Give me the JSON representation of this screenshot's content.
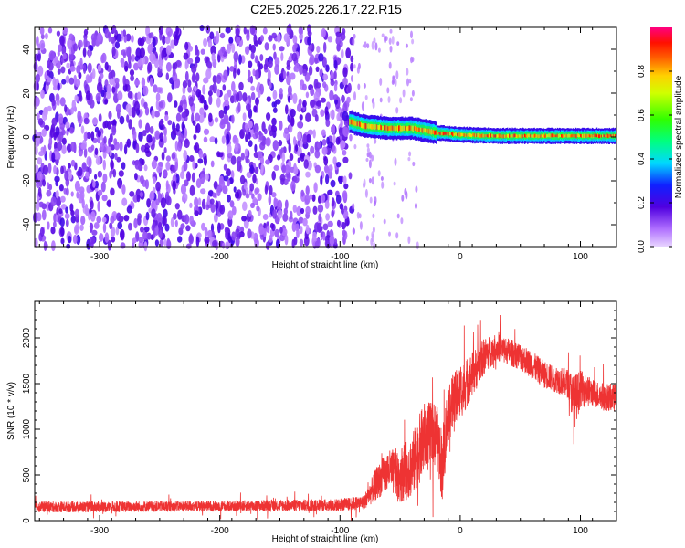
{
  "title": "C2E5.2025.226.17.22.R15",
  "colors": {
    "snr_line": "#ee3333",
    "background": "#ffffff",
    "axis": "#000000"
  },
  "chart_data": [
    {
      "type": "heatmap",
      "title": "C2E5.2025.226.17.22.R15",
      "xlabel": "Height of straight line (km)",
      "ylabel": "Frequency (Hz)",
      "xlim": [
        -354,
        130
      ],
      "ylim": [
        -50,
        50
      ],
      "xticks": [
        -300,
        -200,
        -100,
        0,
        100
      ],
      "xtick_labels": [
        "-300",
        "-200",
        "-100",
        "0",
        "100"
      ],
      "yticks": [
        -40,
        -20,
        0,
        20,
        40
      ],
      "ytick_labels": [
        "-40",
        "-20",
        "0",
        "20",
        "40"
      ],
      "grid": false,
      "colorbar": {
        "label": "Normalized spectral amplitude",
        "range": [
          0,
          1
        ],
        "ticks": [
          0,
          0.2,
          0.4,
          0.6,
          0.8
        ],
        "tick_labels": [
          "0.0",
          "0.2",
          "0.4",
          "0.6",
          "0.8"
        ],
        "colormap": "rainbow (purple → blue → cyan → green → yellow → red → magenta)"
      },
      "features": {
        "noise_region_x": [
          -354,
          -90
        ],
        "noise_amplitude": 0.15,
        "sparse_region_x": [
          -90,
          -35
        ],
        "signal_start_x": -92,
        "signal_track": [
          {
            "x": -92,
            "f": 7
          },
          {
            "x": -80,
            "f": 5
          },
          {
            "x": -60,
            "f": 4
          },
          {
            "x": -40,
            "f": 4
          },
          {
            "x": -20,
            "f": 2
          },
          {
            "x": 0,
            "f": 1
          },
          {
            "x": 30,
            "f": 0.5
          },
          {
            "x": 60,
            "f": 0.5
          },
          {
            "x": 90,
            "f": 0.5
          },
          {
            "x": 130,
            "f": 0.5
          }
        ]
      }
    },
    {
      "type": "line",
      "xlabel": "Height of straight line (km)",
      "ylabel": "SNR (10 * v/v)",
      "xlim": [
        -354,
        130
      ],
      "ylim": [
        0,
        2400
      ],
      "xticks": [
        -300,
        -200,
        -100,
        0,
        100
      ],
      "xtick_labels": [
        "-300",
        "-200",
        "-100",
        "0",
        "100"
      ],
      "yticks": [
        0,
        500,
        1000,
        1500,
        2000
      ],
      "ytick_labels": [
        "0",
        "500",
        "1000",
        "1500",
        "2000"
      ],
      "grid": false,
      "series_envelope": {
        "x": [
          -354,
          -300,
          -200,
          -100,
          -80,
          -70,
          -60,
          -50,
          -40,
          -30,
          -20,
          -15,
          -10,
          0,
          10,
          20,
          30,
          40,
          50,
          60,
          70,
          80,
          90,
          95,
          100,
          110,
          120,
          130
        ],
        "mean": [
          150,
          150,
          160,
          170,
          200,
          400,
          550,
          500,
          600,
          900,
          950,
          600,
          1200,
          1400,
          1600,
          1800,
          1900,
          1850,
          1800,
          1700,
          1600,
          1550,
          1500,
          1300,
          1450,
          1400,
          1350,
          1350
        ],
        "spread": [
          60,
          60,
          60,
          70,
          80,
          180,
          220,
          300,
          350,
          400,
          350,
          400,
          350,
          300,
          250,
          200,
          150,
          150,
          150,
          150,
          150,
          150,
          160,
          300,
          200,
          150,
          150,
          150
        ]
      }
    }
  ]
}
